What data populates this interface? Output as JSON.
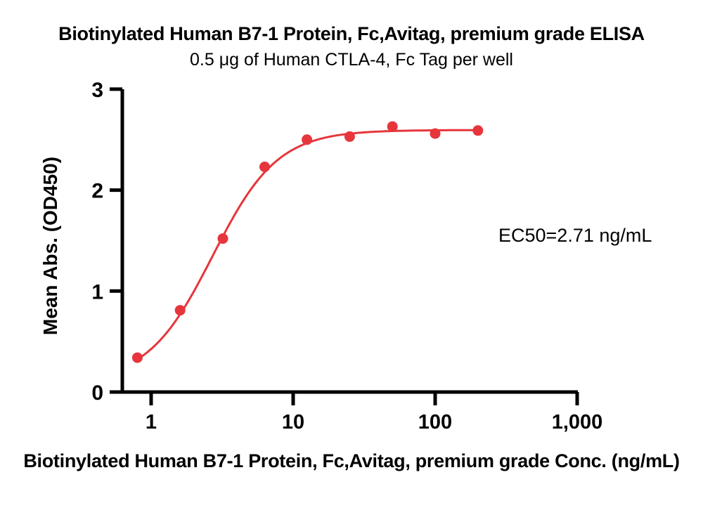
{
  "chart_data": {
    "type": "scatter",
    "title": "Biotinylated Human B7-1 Protein, Fc,Avitag, premium grade ELISA",
    "subtitle": "0.5 μg of Human CTLA-4, Fc Tag per well",
    "xlabel": "Biotinylated Human B7-1 Protein, Fc,Avitag, premium grade Conc. (ng/mL)",
    "ylabel": "Mean Abs. (OD450)",
    "annotation": "EC50=2.71 ng/mL",
    "xscale": "log",
    "x": [
      0.8,
      1.6,
      3.2,
      6.3,
      12.5,
      25,
      50,
      100,
      200
    ],
    "y": [
      0.34,
      0.81,
      1.52,
      2.23,
      2.5,
      2.53,
      2.63,
      2.56,
      2.59
    ],
    "xticks": {
      "values": [
        1,
        10,
        100,
        1000
      ],
      "labels": [
        "1",
        "10",
        "100",
        "1,000"
      ]
    },
    "yticks": {
      "values": [
        0,
        1,
        2,
        3
      ],
      "labels": [
        "0",
        "1",
        "2",
        "3"
      ]
    },
    "xlim": [
      0.63,
      1000
    ],
    "ylim": [
      0,
      3
    ],
    "fit": {
      "model": "4PL",
      "bottom": 0.1,
      "top": 2.595,
      "ec50": 2.71,
      "hill": 1.9
    },
    "marker_color": "#E6363C",
    "line_color": "#E6363C",
    "axis_color": "#000000",
    "grid": false,
    "legend": null
  }
}
